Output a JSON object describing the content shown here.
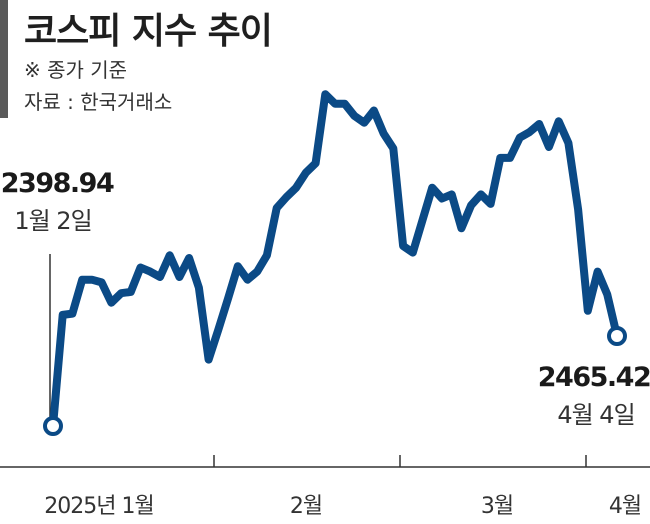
{
  "header": {
    "title": "코스피 지수 추이",
    "note": "※ 종가 기준",
    "source": "자료 : 한국거래소"
  },
  "colors": {
    "line": "#0b4a86",
    "axis": "#333333",
    "header_bar": "#5a5a5a"
  },
  "chart_data": {
    "type": "line",
    "title": "코스피 지수 추이",
    "xlabel": "",
    "ylabel": "",
    "grid": false,
    "x_ticks": [
      "2025년 1월",
      "2월",
      "3월",
      "4월"
    ],
    "ylim": [
      2370,
      2670
    ],
    "series": [
      {
        "values": [
          2398.94,
          2481,
          2482,
          2507,
          2507,
          2505,
          2490,
          2497,
          2498,
          2516,
          2513,
          2509,
          2525,
          2509,
          2523,
          2501,
          2448,
          2470,
          2493,
          2517,
          2507,
          2513,
          2525,
          2560,
          2568,
          2575,
          2586,
          2593,
          2644,
          2637,
          2637,
          2628,
          2623,
          2632,
          2615,
          2604,
          2532,
          2527,
          2551,
          2575,
          2567,
          2570,
          2545,
          2562,
          2570,
          2563,
          2597,
          2597,
          2612,
          2616,
          2622,
          2605,
          2624,
          2608,
          2559,
          2484,
          2513,
          2496,
          2465.42
        ]
      }
    ],
    "annotations": [
      {
        "value": "2398.94",
        "date": "1월 2일"
      },
      {
        "value": "2465.42",
        "date": "4월 4일"
      }
    ]
  }
}
